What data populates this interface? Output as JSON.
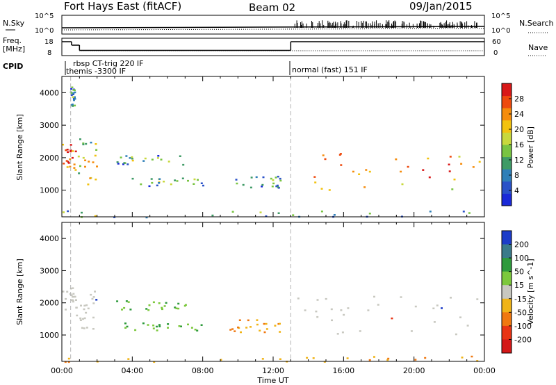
{
  "header": {
    "title": "Fort Hays East (fitACF)",
    "beam": "Beam 02",
    "date": "09/Jan/2015"
  },
  "status_panels": {
    "nsky": {
      "left_label": "N.Sky",
      "right_label": "N.Search",
      "left_ticks": [
        "10^5",
        "10^0"
      ],
      "right_ticks": [
        "10^5",
        "10^0"
      ]
    },
    "freq": {
      "left_label_1": "Freq.",
      "left_label_2": "[MHz]",
      "right_label": "Nave",
      "left_ticks": [
        "18",
        "8"
      ],
      "right_ticks": [
        "60",
        "0"
      ]
    },
    "cpid": {
      "label": "CPID",
      "segments": [
        {
          "name": "rbsp CT-trig 220 IF",
          "start": "00:45",
          "end": "01:00"
        },
        {
          "name": "themis -3300 IF",
          "start": "00:00",
          "end": "13:00"
        },
        {
          "name": "normal (fast) 151 IF",
          "start": "13:00",
          "end": "24:00"
        }
      ]
    },
    "freq_trace_mhz": [
      {
        "from": 0.0,
        "to": 0.55,
        "value": 16
      },
      {
        "from": 0.55,
        "to": 1.0,
        "value": 14
      },
      {
        "from": 1.0,
        "to": 13.0,
        "value": 11
      },
      {
        "from": 13.0,
        "to": 24.0,
        "value": 16
      }
    ]
  },
  "chart_data": [
    {
      "type": "heatmap",
      "panel": "power",
      "xlabel": "",
      "ylabel": "Slant Range [km]",
      "x_range_hours": [
        0,
        24
      ],
      "y_range_km": [
        180,
        4500
      ],
      "y_ticks": [
        1000,
        2000,
        3000,
        4000
      ],
      "x_ticks": [
        "00:00",
        "04:00",
        "08:00",
        "12:00",
        "16:00",
        "20:00",
        "00:00"
      ],
      "colorbar": {
        "label": "Power [dB]",
        "ticks": [
          4,
          8,
          12,
          16,
          20,
          24,
          28
        ],
        "colors": [
          "#1a2ad8",
          "#2a52c8",
          "#2f7fb8",
          "#3f9b66",
          "#79c442",
          "#c8d83c",
          "#f2c20e",
          "#f58c0c",
          "#ee4a0e",
          "#d81818"
        ]
      },
      "markers_hours": [
        0.5,
        13.0
      ],
      "echo_regions": [
        {
          "t0": 0.0,
          "t1": 0.8,
          "r0": 1600,
          "r1": 2500,
          "level": 0.72
        },
        {
          "t0": 0.9,
          "t1": 2.0,
          "r0": 1200,
          "r1": 2600,
          "level": 0.45
        },
        {
          "t0": 0.45,
          "t1": 0.7,
          "r0": 3500,
          "r1": 4200,
          "level": 0.15
        },
        {
          "t0": 3.0,
          "t1": 7.0,
          "r0": 1800,
          "r1": 2100,
          "level": 0.22
        },
        {
          "t0": 3.5,
          "t1": 8.0,
          "r0": 1150,
          "r1": 1400,
          "level": 0.2
        },
        {
          "t0": 9.5,
          "t1": 12.5,
          "r0": 1100,
          "r1": 1500,
          "level": 0.2
        },
        {
          "t0": 0.0,
          "t1": 24.0,
          "r0": 180,
          "r1": 380,
          "level": 0.3
        },
        {
          "t0": 13.0,
          "t1": 24.0,
          "r0": 1000,
          "r1": 2300,
          "level": 0.6
        }
      ]
    },
    {
      "type": "heatmap",
      "panel": "velocity",
      "xlabel": "Time UT",
      "ylabel": "Slant Range [km]",
      "x_range_hours": [
        0,
        24
      ],
      "y_range_km": [
        180,
        4500
      ],
      "y_ticks": [
        1000,
        2000,
        3000,
        4000
      ],
      "x_ticks": [
        "00:00",
        "04:00",
        "08:00",
        "12:00",
        "16:00",
        "20:00",
        "00:00"
      ],
      "colorbar": {
        "label": "Velocity [m s^-1]",
        "ticks": [
          "200",
          "100",
          "50",
          "15",
          "-15",
          "-50",
          "-100",
          "-200"
        ],
        "colors": [
          "#1c3cc8",
          "#3a7a8a",
          "#2e9a3c",
          "#7cc83c",
          "#c8c8c0",
          "#f0b418",
          "#f07810",
          "#e83414",
          "#d41818"
        ]
      },
      "markers_hours": [
        0.5,
        13.0
      ],
      "echo_regions": [
        {
          "t0": 0.0,
          "t1": 0.8,
          "r0": 1600,
          "r1": 2500,
          "class": "ground"
        },
        {
          "t0": 0.9,
          "t1": 2.0,
          "r0": 1200,
          "r1": 2400,
          "class": "ground"
        },
        {
          "t0": 3.0,
          "t1": 7.0,
          "r0": 1800,
          "r1": 2100,
          "class": "positive"
        },
        {
          "t0": 3.5,
          "t1": 8.0,
          "r0": 1150,
          "r1": 1400,
          "class": "positive"
        },
        {
          "t0": 9.5,
          "t1": 12.5,
          "r0": 1100,
          "r1": 1500,
          "class": "negative"
        },
        {
          "t0": 0.0,
          "t1": 24.0,
          "r0": 180,
          "r1": 380,
          "class": "negative"
        },
        {
          "t0": 13.0,
          "t1": 24.0,
          "r0": 1000,
          "r1": 2300,
          "class": "ground"
        }
      ]
    }
  ]
}
